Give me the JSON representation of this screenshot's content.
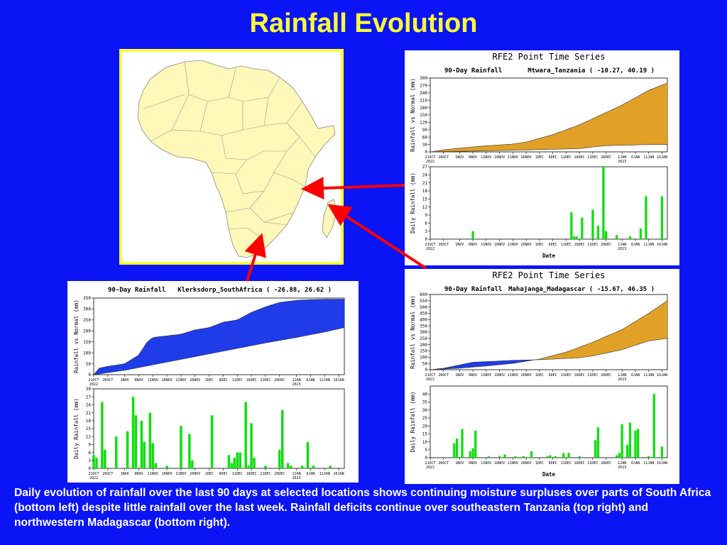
{
  "title": "Rainfall Evolution",
  "caption": "Daily evolution of rainfall over the last 90 days at selected locations shows continuing moisture surpluses over parts of South Africa (bottom left) despite little rainfall over the last week. Rainfall deficits continue over southeastern Tanzania (top right) and northwestern Madagascar (bottom right).",
  "colors": {
    "background": "#0a14f5",
    "title": "#ffff33",
    "map_land": "#fff8b8",
    "deficit_fill": "#e0a126",
    "surplus_fill": "#1f3ce8",
    "daily_bar": "#11dd11",
    "arrow": "#ff0000"
  },
  "map_icon": "africa-map",
  "x_tick_labels": [
    "21OCT",
    "26OCT",
    "1NOV",
    "6NOV",
    "11NOV",
    "16NOV",
    "21NOV",
    "26NOV",
    "1DEC",
    "6DEC",
    "11DEC",
    "16DEC",
    "21DEC",
    "26DEC",
    "1JAN",
    "6JAN",
    "11JAN",
    "16JAN"
  ],
  "chart_data": [
    {
      "id": "mtwara",
      "type": "area",
      "header": "RFE2 Point Time Series",
      "title": "90-Day Rainfall",
      "location": "Mtwara_Tanzania ( -10.27, 40.19 )",
      "ylabel": "Rainfall vs Normal (mm)",
      "ylim": [
        0,
        300
      ],
      "yticks": [
        0,
        30,
        60,
        90,
        120,
        150,
        180,
        210,
        240,
        270,
        300
      ],
      "x_start": "2022-10-21",
      "x_end": "2023-01-18",
      "x_sub_labels": [
        "2022",
        "2023"
      ],
      "series": [
        {
          "name": "Normal",
          "dates": [
            "2022-10-21",
            "2022-10-26",
            "2022-11-01",
            "2022-11-06",
            "2022-11-11",
            "2022-11-16",
            "2022-11-21",
            "2022-11-26",
            "2022-12-01",
            "2022-12-06",
            "2022-12-11",
            "2022-12-16",
            "2022-12-21",
            "2022-12-26",
            "2023-01-01",
            "2023-01-06",
            "2023-01-11",
            "2023-01-18"
          ],
          "values": [
            0,
            8,
            15,
            20,
            25,
            28,
            32,
            40,
            55,
            70,
            90,
            110,
            135,
            160,
            190,
            220,
            250,
            280
          ]
        },
        {
          "name": "Observed",
          "dates": [
            "2022-10-21",
            "2022-11-06",
            "2022-12-16",
            "2022-12-21",
            "2022-12-26",
            "2023-01-01",
            "2023-01-06",
            "2023-01-11",
            "2023-01-18"
          ],
          "values": [
            0,
            3,
            13,
            20,
            25,
            27,
            28,
            30,
            30
          ]
        }
      ],
      "daily": {
        "ylabel": "Daily Rainfall (mm)",
        "xlabel": "Date",
        "ylim": [
          0,
          27
        ],
        "yticks": [
          0,
          3,
          6,
          9,
          12,
          15,
          18,
          21,
          24,
          27
        ],
        "dates": [
          "2022-11-06",
          "2022-12-13",
          "2022-12-14",
          "2022-12-15",
          "2022-12-17",
          "2022-12-21",
          "2022-12-23",
          "2022-12-25",
          "2022-12-26",
          "2022-12-30",
          "2023-01-04",
          "2023-01-08",
          "2023-01-10",
          "2023-01-16"
        ],
        "values": [
          3,
          10,
          1,
          1,
          8,
          11,
          5,
          27,
          3,
          1.5,
          1,
          4,
          16,
          16
        ]
      }
    },
    {
      "id": "klerksdorp",
      "type": "area",
      "title": "90-Day Rainfall",
      "location": "Klerksdorp_SouthAfrica ( -26.88, 26.62 )",
      "ylabel": "Rainfall vs Normal (mm)",
      "ylim": [
        0,
        350
      ],
      "yticks": [
        0,
        50,
        100,
        150,
        200,
        250,
        300,
        350
      ],
      "x_start": "2022-10-21",
      "x_end": "2023-01-18",
      "x_sub_labels": [
        "2022",
        "2023"
      ],
      "series": [
        {
          "name": "Normal",
          "dates": [
            "2022-10-21",
            "2022-11-01",
            "2022-11-11",
            "2022-11-21",
            "2022-12-01",
            "2022-12-11",
            "2022-12-21",
            "2023-01-01",
            "2023-01-11",
            "2023-01-18"
          ],
          "values": [
            0,
            20,
            45,
            70,
            95,
            120,
            145,
            170,
            195,
            215
          ]
        },
        {
          "name": "Observed",
          "dates": [
            "2022-10-21",
            "2022-10-23",
            "2022-10-26",
            "2022-11-01",
            "2022-11-06",
            "2022-11-09",
            "2022-11-11",
            "2022-11-21",
            "2022-11-26",
            "2022-12-01",
            "2022-12-06",
            "2022-12-11",
            "2022-12-16",
            "2022-12-21",
            "2022-12-26",
            "2023-01-01",
            "2023-01-06",
            "2023-01-11",
            "2023-01-18"
          ],
          "values": [
            0,
            30,
            38,
            50,
            90,
            150,
            170,
            185,
            205,
            215,
            240,
            250,
            285,
            310,
            330,
            340,
            343,
            345,
            345
          ]
        }
      ],
      "daily": {
        "ylabel": "Daily Rainfall (mm)",
        "xlabel": "",
        "ylim": [
          0,
          30
        ],
        "yticks": [
          0,
          3,
          6,
          9,
          12,
          15,
          18,
          21,
          24,
          27,
          30
        ],
        "dates": [
          "2022-10-21",
          "2022-10-22",
          "2022-10-24",
          "2022-10-25",
          "2022-10-29",
          "2022-11-02",
          "2022-11-04",
          "2022-11-05",
          "2022-11-07",
          "2022-11-08",
          "2022-11-10",
          "2022-11-11",
          "2022-11-12",
          "2022-11-16",
          "2022-11-21",
          "2022-11-24",
          "2022-11-25",
          "2022-12-02",
          "2022-12-08",
          "2022-12-09",
          "2022-12-10",
          "2022-12-11",
          "2022-12-12",
          "2022-12-14",
          "2022-12-15",
          "2022-12-16",
          "2022-12-17",
          "2022-12-21",
          "2022-12-26",
          "2022-12-27",
          "2022-12-29",
          "2022-12-30",
          "2023-01-03",
          "2023-01-05",
          "2023-01-07",
          "2023-01-13"
        ],
        "values": [
          5,
          4,
          25,
          7,
          12,
          14,
          27,
          20,
          18,
          10,
          21,
          9.5,
          2,
          1,
          16,
          13,
          3,
          20,
          5,
          2,
          4,
          6,
          6,
          25,
          1,
          17,
          4,
          1,
          7,
          22,
          2,
          1,
          1,
          10,
          1,
          1
        ]
      }
    },
    {
      "id": "mahajanga",
      "type": "area",
      "header": "RFE2 Point Time Series",
      "title": "90-Day Rainfall",
      "location": "Mahajanga_Madagascar ( -15.67, 46.35 )",
      "ylabel": "Rainfall vs Normal (mm)",
      "ylim": [
        0,
        600
      ],
      "yticks": [
        0,
        50,
        100,
        150,
        200,
        250,
        300,
        350,
        400,
        450,
        500,
        550,
        600
      ],
      "x_start": "2022-10-21",
      "x_end": "2023-01-18",
      "x_sub_labels": [
        "2022",
        "2023"
      ],
      "series": [
        {
          "name": "Normal",
          "dates": [
            "2022-10-21",
            "2022-10-26",
            "2022-11-01",
            "2022-11-11",
            "2022-11-21",
            "2022-12-01",
            "2022-12-11",
            "2022-12-21",
            "2023-01-01",
            "2023-01-11",
            "2023-01-18"
          ],
          "values": [
            0,
            5,
            12,
            30,
            50,
            85,
            140,
            220,
            320,
            450,
            550
          ]
        },
        {
          "name": "Observed",
          "dates": [
            "2022-10-21",
            "2022-10-26",
            "2022-11-01",
            "2022-11-06",
            "2022-11-21",
            "2022-12-01",
            "2022-12-16",
            "2022-12-21",
            "2023-01-01",
            "2023-01-11",
            "2023-01-18"
          ],
          "values": [
            0,
            12,
            38,
            60,
            75,
            80,
            95,
            110,
            160,
            230,
            250
          ]
        }
      ],
      "daily": {
        "ylabel": "Daily Rainfall (mm)",
        "xlabel": "Date",
        "ylim": [
          0,
          45
        ],
        "yticks": [
          0,
          5,
          10,
          15,
          20,
          25,
          30,
          35,
          40
        ],
        "dates": [
          "2022-10-30",
          "2022-10-31",
          "2022-11-02",
          "2022-11-05",
          "2022-11-06",
          "2022-11-07",
          "2022-11-12",
          "2022-11-16",
          "2022-11-18",
          "2022-11-22",
          "2022-11-25",
          "2022-11-28",
          "2022-12-04",
          "2022-12-05",
          "2022-12-07",
          "2022-12-10",
          "2022-12-12",
          "2022-12-16",
          "2022-12-22",
          "2022-12-23",
          "2022-12-30",
          "2022-12-31",
          "2023-01-01",
          "2023-01-03",
          "2023-01-04",
          "2023-01-06",
          "2023-01-07",
          "2023-01-11",
          "2023-01-13",
          "2023-01-16"
        ],
        "values": [
          9,
          12,
          18,
          4,
          6,
          17,
          1,
          1,
          2,
          1,
          1,
          4,
          1,
          1.5,
          1,
          3,
          3,
          1,
          11,
          19,
          1.5,
          3,
          21,
          8,
          22,
          17,
          18,
          1,
          40,
          7
        ]
      }
    }
  ]
}
